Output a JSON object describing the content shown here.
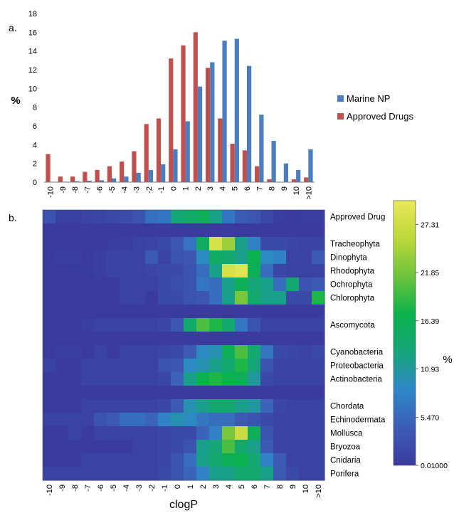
{
  "chart_data": [
    {
      "type": "bar",
      "panel_label": "a.",
      "ylabel": "%",
      "ylim": [
        0,
        18
      ],
      "yticks": [
        0,
        2,
        4,
        6,
        8,
        10,
        12,
        14,
        16,
        18
      ],
      "categories": [
        "-10",
        "-9",
        "-8",
        "-7",
        "-6",
        "-5",
        "-4",
        "-3",
        "-2",
        "-1",
        "0",
        "1",
        "2",
        "3",
        "4",
        "5",
        "6",
        "7",
        "8",
        "9",
        "10",
        ">10"
      ],
      "legend_position": "right",
      "series": [
        {
          "name": "Marine NP",
          "color": "#4a7ec0",
          "values": [
            0.0,
            0.05,
            0.1,
            0.15,
            0.2,
            0.4,
            0.6,
            1.0,
            1.3,
            1.9,
            3.5,
            6.5,
            10.2,
            12.8,
            15.1,
            15.3,
            12.4,
            7.2,
            4.4,
            2.0,
            1.3,
            3.5
          ]
        },
        {
          "name": "Approved Drugs",
          "color": "#c0504d",
          "values": [
            3.0,
            0.6,
            0.6,
            1.1,
            1.3,
            1.7,
            2.2,
            3.3,
            6.2,
            6.8,
            13.2,
            14.6,
            16.0,
            12.2,
            6.8,
            4.1,
            3.4,
            1.7,
            0.3,
            0.0,
            0.3,
            0.5
          ]
        }
      ]
    },
    {
      "type": "heatmap",
      "panel_label": "b.",
      "xlabel": "clogP",
      "categories": [
        "-10",
        "-9",
        "-8",
        "-7",
        "-6",
        "-5",
        "-4",
        "-3",
        "-2",
        "-1",
        "0",
        "1",
        "2",
        "3",
        "4",
        "5",
        "6",
        "7",
        "8",
        "9",
        "10",
        ">10"
      ],
      "row_labels": [
        "Approved Drug",
        "",
        "Tracheophyta",
        "Dinophyta",
        "Rhodophyta",
        "Ochrophyta",
        "Chlorophyta",
        "",
        "Ascomycota",
        "",
        "Cyanobacteria",
        "Proteobacteria",
        "Actinobacteria",
        "",
        "Chordata",
        "Echinodermata",
        "Mollusca",
        "Bryozoa",
        "Cnidaria",
        "Porifera"
      ],
      "colorbar": {
        "label": "%",
        "min": 0.01,
        "max": 30,
        "ticks": [
          "27.31",
          "21.85",
          "16.39",
          "10.93",
          "5.470",
          "0.01000"
        ],
        "tick_values": [
          27.31,
          21.85,
          16.39,
          10.93,
          5.47,
          0.01
        ],
        "colors": [
          "#3a3b9c",
          "#3c5cb6",
          "#2f87c8",
          "#15a57a",
          "#0bb14c",
          "#6cc33c",
          "#bcd83a",
          "#eae85a"
        ]
      },
      "values": [
        [
          3.0,
          0.6,
          0.6,
          1.1,
          1.3,
          1.7,
          2.2,
          3.3,
          6.2,
          6.8,
          13.2,
          14.6,
          16.0,
          12.2,
          6.8,
          4.1,
          3.4,
          1.7,
          0.3,
          0.0,
          0.3,
          0.5
        ],
        [
          0,
          0,
          0,
          0,
          0,
          0,
          0,
          0,
          0,
          0,
          0,
          0,
          0,
          0,
          0,
          0,
          0,
          0,
          0,
          0,
          0,
          0
        ],
        [
          0.0,
          0.0,
          0.0,
          0.0,
          0.0,
          0.3,
          0.5,
          1.0,
          1.3,
          1.9,
          3.5,
          6.5,
          15.0,
          28.0,
          24.0,
          12.0,
          8.0,
          2.0,
          2.0,
          1.5,
          1.0,
          1.0
        ],
        [
          0.0,
          0.5,
          0.5,
          0.0,
          0.5,
          1.0,
          1.0,
          1.0,
          4.0,
          1.0,
          3.0,
          3.5,
          9.0,
          15.0,
          14.0,
          12.0,
          17.0,
          9.0,
          8.0,
          1.0,
          1.0,
          4.0
        ],
        [
          0.0,
          0.0,
          0.2,
          0.2,
          0.5,
          1.0,
          1.0,
          1.0,
          1.5,
          2.0,
          2.0,
          3.0,
          6.0,
          12.0,
          28.0,
          29.0,
          16.0,
          6.0,
          1.5,
          1.0,
          1.0,
          1.0
        ],
        [
          0.0,
          0.0,
          0.0,
          0.0,
          0.0,
          0.0,
          1.0,
          1.0,
          1.0,
          2.0,
          2.5,
          3.0,
          7.0,
          6.0,
          12.0,
          16.0,
          13.0,
          12.0,
          6.0,
          14.0,
          3.0,
          4.0
        ],
        [
          0.0,
          0.0,
          0.0,
          0.0,
          0.0,
          0.0,
          1.0,
          1.0,
          0.0,
          2.0,
          2.0,
          3.0,
          3.5,
          6.0,
          12.0,
          22.0,
          14.0,
          12.0,
          12.0,
          2.0,
          2.0,
          18.0
        ],
        [
          0,
          0,
          0,
          0,
          0,
          0,
          0,
          0,
          0,
          0,
          0,
          0,
          0,
          0,
          0,
          0,
          0,
          0,
          0,
          0,
          0,
          0
        ],
        [
          0.0,
          0.0,
          0.0,
          0.5,
          1.0,
          1.0,
          1.0,
          1.0,
          1.0,
          1.5,
          3.5,
          14.0,
          20.0,
          18.0,
          14.0,
          7.0,
          3.0,
          1.0,
          1.0,
          1.0,
          1.0,
          1.0
        ],
        [
          0,
          0,
          0,
          0,
          0,
          0,
          0,
          0,
          0,
          0,
          0,
          0,
          0,
          0,
          0,
          0,
          0,
          0,
          0,
          0,
          0,
          0
        ],
        [
          0.0,
          0.5,
          0.5,
          0.0,
          1.0,
          0.0,
          1.0,
          1.0,
          1.0,
          1.5,
          2.0,
          4.0,
          9.0,
          10.0,
          16.0,
          20.0,
          14.0,
          7.0,
          2.0,
          1.5,
          1.0,
          2.0
        ],
        [
          1.0,
          0.0,
          0.0,
          1.0,
          1.0,
          1.0,
          1.0,
          1.0,
          1.0,
          3.0,
          3.5,
          9.0,
          10.0,
          12.0,
          14.0,
          18.0,
          13.0,
          3.0,
          1.0,
          1.0,
          1.0,
          1.0
        ],
        [
          0.0,
          0.0,
          0.0,
          1.0,
          1.0,
          1.0,
          1.0,
          1.0,
          1.0,
          1.5,
          5.0,
          12.0,
          17.0,
          18.0,
          17.0,
          16.0,
          11.0,
          2.0,
          1.0,
          1.0,
          1.0,
          1.0
        ],
        [
          0,
          0,
          0,
          0,
          0,
          0,
          0,
          0,
          0,
          0,
          0,
          0,
          0,
          0,
          0,
          0,
          0,
          0,
          0,
          0,
          0,
          0
        ],
        [
          0.0,
          0.0,
          0.0,
          1.0,
          1.0,
          1.0,
          1.0,
          1.0,
          1.0,
          1.5,
          4.0,
          10.0,
          12.0,
          14.0,
          14.0,
          12.0,
          11.0,
          5.0,
          1.5,
          1.0,
          1.0,
          1.0
        ],
        [
          1.0,
          1.0,
          1.0,
          1.0,
          3.0,
          4.0,
          6.0,
          6.0,
          5.0,
          8.0,
          10.0,
          9.0,
          7.0,
          6.0,
          6.0,
          4.0,
          3.0,
          2.0,
          1.0,
          1.0,
          1.0,
          1.0
        ],
        [
          0.0,
          0.0,
          1.0,
          0.0,
          1.0,
          1.0,
          1.0,
          1.0,
          1.0,
          1.5,
          2.0,
          2.0,
          5.0,
          8.0,
          22.0,
          27.0,
          16.0,
          3.0,
          1.0,
          1.0,
          1.0,
          1.0
        ],
        [
          0.0,
          0.0,
          0.0,
          0.0,
          0.0,
          0.0,
          0.0,
          1.0,
          1.0,
          1.5,
          2.0,
          3.0,
          12.0,
          13.0,
          20.0,
          14.0,
          12.0,
          4.0,
          1.0,
          1.0,
          1.0,
          1.0
        ],
        [
          0.0,
          0.0,
          0.0,
          1.0,
          1.0,
          1.0,
          1.0,
          1.0,
          1.0,
          1.5,
          3.0,
          6.0,
          12.0,
          14.0,
          16.0,
          17.0,
          14.0,
          8.0,
          4.0,
          1.0,
          1.0,
          1.0
        ],
        [
          1.0,
          1.0,
          1.0,
          1.0,
          1.0,
          1.0,
          1.0,
          1.0,
          1.0,
          2.0,
          3.0,
          5.0,
          8.0,
          12.0,
          12.0,
          14.0,
          14.0,
          12.0,
          4.0,
          2.0,
          1.0,
          1.0
        ]
      ]
    }
  ]
}
